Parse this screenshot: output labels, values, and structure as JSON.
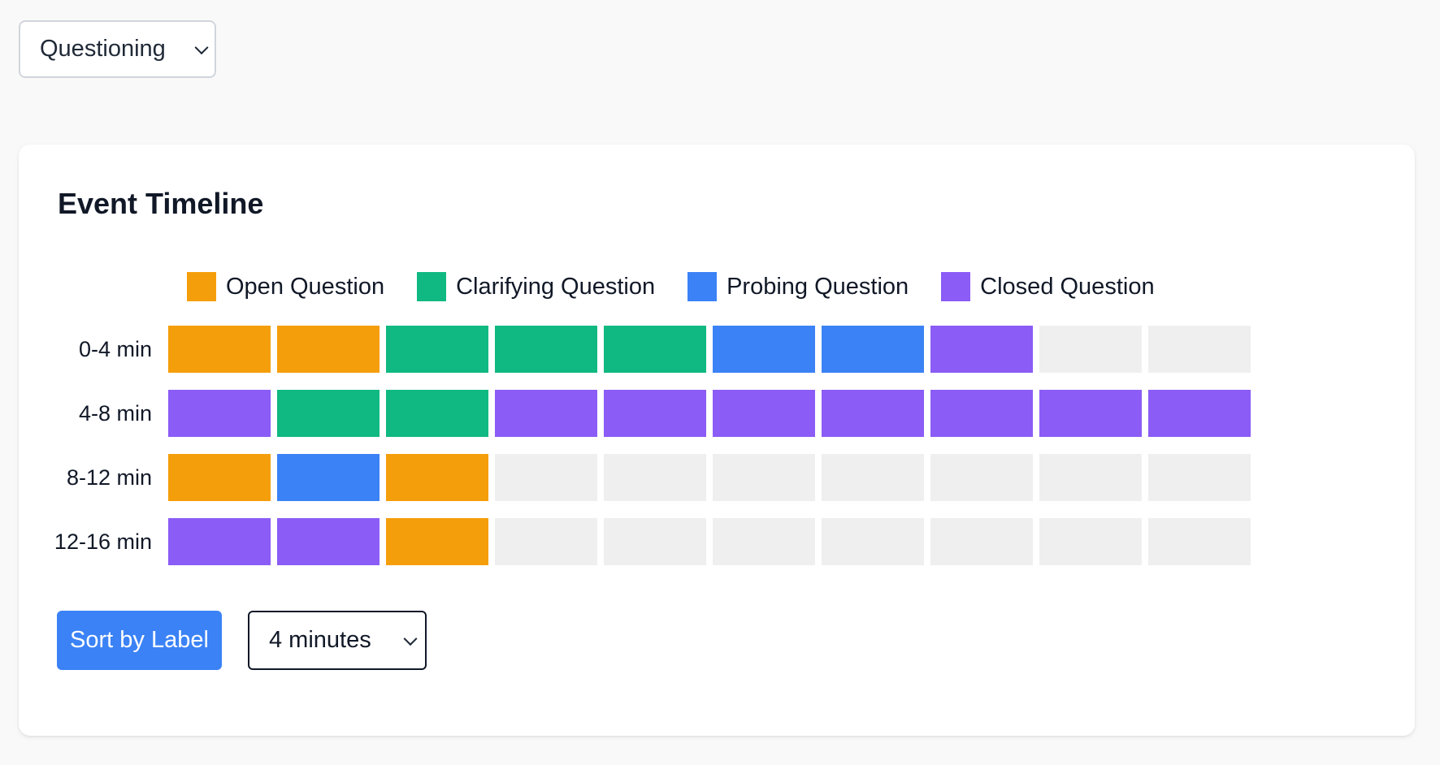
{
  "filter": {
    "selected": "Questioning"
  },
  "card": {
    "title": "Event Timeline"
  },
  "legend": [
    {
      "label": "Open Question",
      "color": "#f59e0b"
    },
    {
      "label": "Clarifying Question",
      "color": "#10b981"
    },
    {
      "label": "Probing Question",
      "color": "#3b82f6"
    },
    {
      "label": "Closed Question",
      "color": "#8b5cf6"
    }
  ],
  "empty_color": "#efefef",
  "timeline": {
    "rows": [
      {
        "label": "0-4 min",
        "cells": [
          "Open Question",
          "Open Question",
          "Clarifying Question",
          "Clarifying Question",
          "Clarifying Question",
          "Probing Question",
          "Probing Question",
          "Closed Question",
          null,
          null
        ]
      },
      {
        "label": "4-8 min",
        "cells": [
          "Closed Question",
          "Clarifying Question",
          "Clarifying Question",
          "Closed Question",
          "Closed Question",
          "Closed Question",
          "Closed Question",
          "Closed Question",
          "Closed Question",
          "Closed Question"
        ]
      },
      {
        "label": "8-12 min",
        "cells": [
          "Open Question",
          "Probing Question",
          "Open Question",
          null,
          null,
          null,
          null,
          null,
          null,
          null
        ]
      },
      {
        "label": "12-16 min",
        "cells": [
          "Closed Question",
          "Closed Question",
          "Open Question",
          null,
          null,
          null,
          null,
          null,
          null,
          null
        ]
      }
    ]
  },
  "controls": {
    "sort_label": "Sort by Label",
    "interval_selected": "4 minutes"
  }
}
